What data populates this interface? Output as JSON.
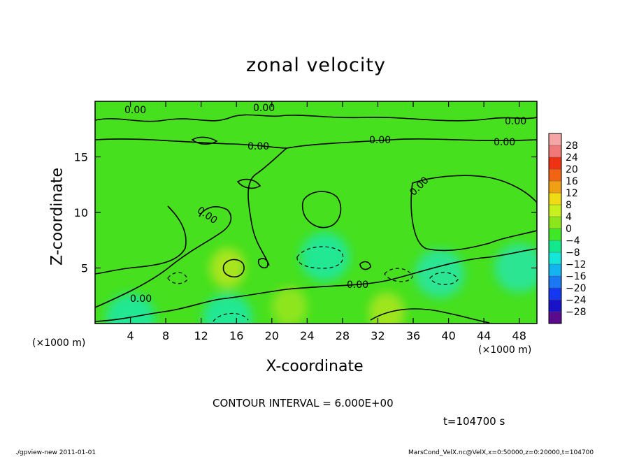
{
  "figure": {
    "title": "zonal velocity",
    "contour_interval": "CONTOUR INTERVAL = 6.000E+00",
    "time_label": "t=104700 s",
    "footer_left": "./gpview-new  2011-01-01",
    "footer_right": "MarsCond_VelX.nc@VelX,x=0:50000,z=0:20000,t=104700"
  },
  "chart_data": {
    "type": "heatmap",
    "title": "zonal velocity",
    "xlabel": "X-coordinate",
    "ylabel": "Z-coordinate",
    "x_unit": "(×1000 m)",
    "xlim": [
      0,
      50
    ],
    "ylim": [
      0,
      20
    ],
    "x_ticks": [
      4,
      8,
      12,
      16,
      20,
      24,
      28,
      32,
      36,
      40,
      44,
      48
    ],
    "y_ticks": [
      5,
      10,
      15
    ],
    "colorbar": {
      "levels": [
        -32,
        -28,
        -24,
        -20,
        -16,
        -12,
        -8,
        -4,
        0,
        4,
        8,
        12,
        16,
        20,
        24,
        28,
        32
      ],
      "labels": [
        "28",
        "24",
        "20",
        "16",
        "12",
        "8",
        "4",
        "0",
        "−4",
        "−8",
        "−12",
        "−16",
        "−20",
        "−24",
        "−28"
      ],
      "colors": [
        "#5a0a8c",
        "#1a12c8",
        "#1438f0",
        "#1a78f0",
        "#14b4f0",
        "#14e6d8",
        "#14e88c",
        "#40e628",
        "#8ce61c",
        "#c8f01e",
        "#f0dc14",
        "#f0a014",
        "#f06414",
        "#f03214",
        "#f07878",
        "#f4a6a6"
      ]
    },
    "contour_label": "0.00",
    "features": [
      {
        "kind": "background",
        "value": 0,
        "color": "#46e01e"
      },
      {
        "kind": "weak negative patch",
        "x": 26,
        "z": 6,
        "value": -6,
        "color": "#1ee8a0"
      },
      {
        "kind": "weak negative patch",
        "x": 15,
        "z": 0.5,
        "value": -6,
        "color": "#1ee8a0"
      },
      {
        "kind": "weak negative patch",
        "x": 39,
        "z": 4.5,
        "value": -5,
        "color": "#28e6a0"
      },
      {
        "kind": "weak negative patch",
        "x": 48,
        "z": 5,
        "value": -5,
        "color": "#28e6a0"
      },
      {
        "kind": "weak negative patch",
        "x": 4,
        "z": 0.5,
        "value": -6,
        "color": "#1ee8a0"
      },
      {
        "kind": "weak positive patch",
        "x": 15,
        "z": 5,
        "value": 6,
        "color": "#b4e61e"
      },
      {
        "kind": "weak positive patch",
        "x": 33,
        "z": 1,
        "value": 4,
        "color": "#a8e61e"
      },
      {
        "kind": "weak positive patch",
        "x": 22,
        "z": 1.5,
        "value": 3,
        "color": "#96e61e"
      }
    ]
  }
}
